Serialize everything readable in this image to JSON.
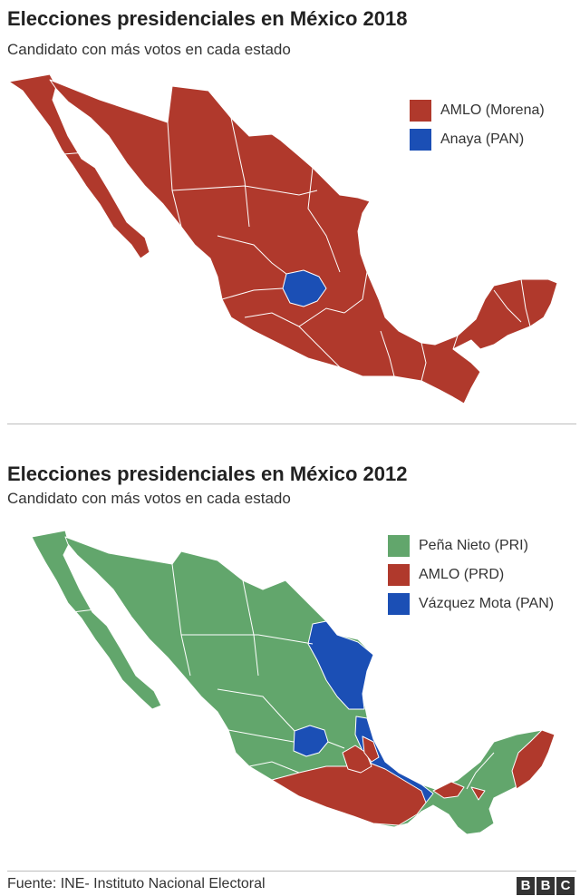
{
  "colors": {
    "morena": "#b0392c",
    "pan": "#1b4fb5",
    "pri": "#62a66c",
    "prd": "#b0392c",
    "border": "#ffffff"
  },
  "map2018": {
    "title": "Elecciones presidenciales en México 2018",
    "subtitle": "Candidato con más votos en cada estado",
    "legend": [
      {
        "label": "AMLO (Morena)",
        "color": "#b0392c"
      },
      {
        "label": "Anaya (PAN)",
        "color": "#1b4fb5"
      }
    ],
    "winners": {
      "AMLO (Morena)": "all states except Guanajuato",
      "Anaya (PAN)": [
        "Guanajuato"
      ]
    }
  },
  "map2012": {
    "title": "Elecciones presidenciales en México 2012",
    "subtitle": "Candidato con más votos en cada estado",
    "legend": [
      {
        "label": "Peña Nieto (PRI)",
        "color": "#62a66c"
      },
      {
        "label": "AMLO (PRD)",
        "color": "#b0392c"
      },
      {
        "label": "Vázquez Mota (PAN)",
        "color": "#1b4fb5"
      }
    ],
    "winners": {
      "Peña Nieto (PRI)": "majority of states",
      "AMLO (PRD)": [
        "Guerrero",
        "Oaxaca",
        "Tabasco",
        "Ciudad de México",
        "Morelos",
        "Quintana Roo"
      ],
      "Vázquez Mota (PAN)": [
        "Tamaulipas",
        "Veracruz (norte)",
        "Guanajuato"
      ]
    }
  },
  "footer": {
    "source": "Fuente: INE- Instituto Nacional Electoral",
    "logo": [
      "B",
      "B",
      "C"
    ]
  }
}
